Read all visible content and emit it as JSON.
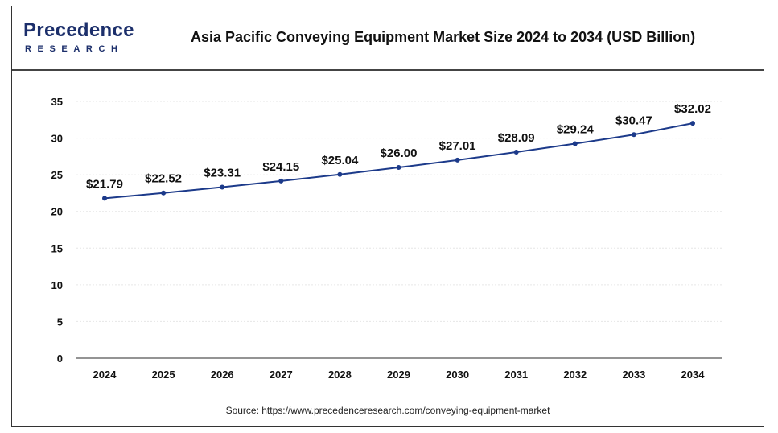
{
  "brand": {
    "name": "Precedence",
    "sub": "RESEARCH"
  },
  "source": "Source: https://www.precedenceresearch.com/conveying-equipment-market",
  "colors": {
    "line": "#1c3a8a",
    "axis": "#555555",
    "text": "#111111",
    "grid": "#e6e6e6"
  },
  "chart_data": {
    "type": "line",
    "title": "Asia Pacific Conveying Equipment Market Size 2024 to 2034 (USD Billion)",
    "xlabel": "",
    "ylabel": "",
    "categories": [
      "2024",
      "2025",
      "2026",
      "2027",
      "2028",
      "2029",
      "2030",
      "2031",
      "2032",
      "2033",
      "2034"
    ],
    "values": [
      21.79,
      22.52,
      23.31,
      24.15,
      25.04,
      26.0,
      27.01,
      28.09,
      29.24,
      30.47,
      32.02
    ],
    "data_labels": [
      "$21.79",
      "$22.52",
      "$23.31",
      "$24.15",
      "$25.04",
      "$26.00",
      "$27.01",
      "$28.09",
      "$29.24",
      "$30.47",
      "$32.02"
    ],
    "y_ticks": [
      0,
      5,
      10,
      15,
      20,
      25,
      30,
      35
    ],
    "ylim": [
      0,
      35
    ],
    "grid": true,
    "legend": "none"
  }
}
